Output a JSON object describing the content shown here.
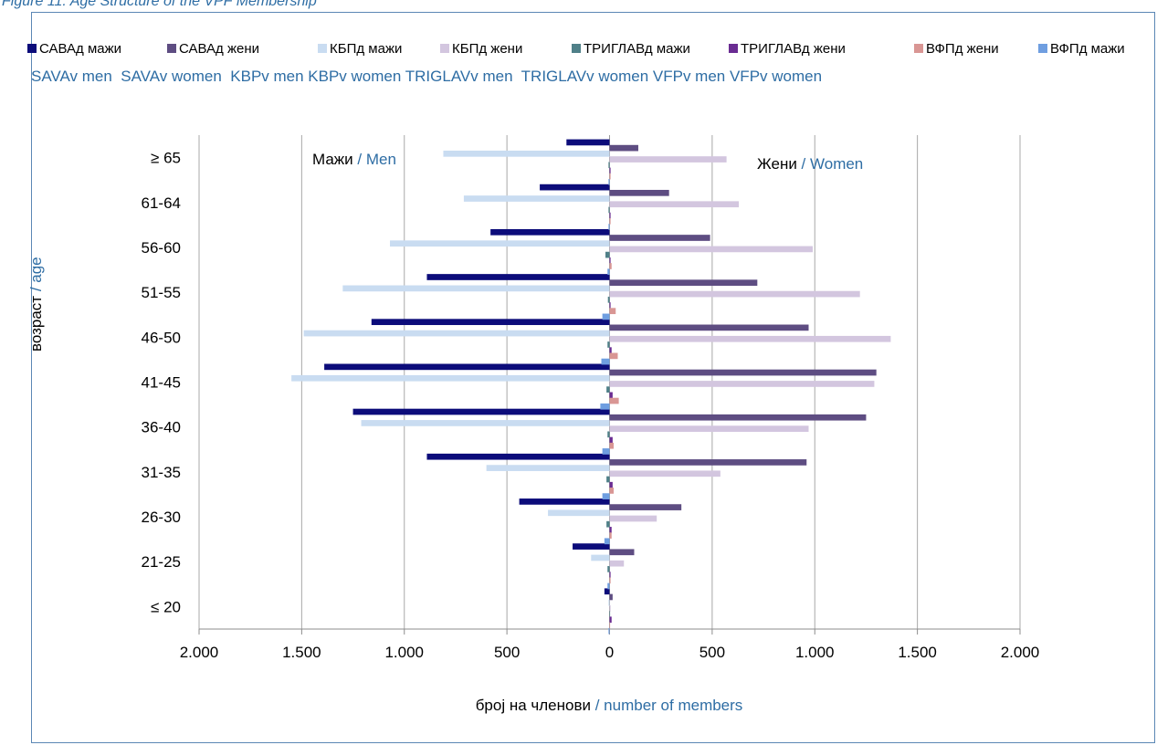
{
  "caption": "Figure 11. Age Structure of the VPF Membership",
  "chart_data": {
    "type": "bar",
    "orientation": "horizontal",
    "categories": [
      "≥ 65",
      "61-64",
      "56-60",
      "51-55",
      "46-50",
      "41-45",
      "36-40",
      "31-35",
      "26-30",
      "21-25",
      "≤ 20"
    ],
    "xlim": [
      -2000,
      2000
    ],
    "xticks": [
      -2000,
      -1500,
      -1000,
      -500,
      0,
      500,
      1000,
      1500,
      2000
    ],
    "xtick_labels": [
      "2.000",
      "1.500",
      "1.000",
      "500",
      "0",
      "500",
      "1.000",
      "1.500",
      "2.000"
    ],
    "grid": true,
    "legend_position": "top",
    "xlabel": {
      "mk": "број на членови",
      "en": " / number of members"
    },
    "ylabel": {
      "mk": "возраст",
      "en": " / age"
    },
    "side_labels": {
      "men": {
        "mk": "Мажи",
        "en": " / Men"
      },
      "women": {
        "mk": "Жени",
        "en": " / Women"
      }
    },
    "legend_en": "SAVAv men  SAVAv women  KBPv men KBPv women TRIGLAVv men  TRIGLAVv women VFPv men VFPv women",
    "series": [
      {
        "name": "САВАд мажи",
        "color": "#0c0c7a",
        "values": [
          -210,
          -340,
          -580,
          -890,
          -1160,
          -1390,
          -1250,
          -890,
          -440,
          -180,
          -25
        ]
      },
      {
        "name": "САВАд жени",
        "color": "#5e4d82",
        "values": [
          140,
          290,
          490,
          720,
          970,
          1300,
          1250,
          960,
          350,
          120,
          15
        ]
      },
      {
        "name": "КБПд мажи",
        "color": "#c9dcf1",
        "values": [
          -810,
          -710,
          -1070,
          -1300,
          -1490,
          -1550,
          -1210,
          -600,
          -300,
          -90,
          -5
        ]
      },
      {
        "name": "КБПд жени",
        "color": "#d3c6df",
        "values": [
          570,
          630,
          990,
          1220,
          1370,
          1290,
          970,
          540,
          230,
          70,
          5
        ]
      },
      {
        "name": "ТРИГЛАВд мажи",
        "color": "#4f8088",
        "values": [
          -5,
          -5,
          -20,
          -8,
          -10,
          -15,
          -10,
          -15,
          -15,
          -10,
          0
        ]
      },
      {
        "name": "ТРИГЛАВд жени",
        "color": "#6a2c92",
        "values": [
          5,
          5,
          5,
          5,
          10,
          15,
          15,
          15,
          10,
          5,
          10
        ]
      },
      {
        "name": "ВФПд жени",
        "color": "#d99694",
        "values": [
          5,
          5,
          10,
          30,
          40,
          45,
          20,
          20,
          10,
          5,
          0
        ]
      },
      {
        "name": "ВФПд мажи",
        "color": "#6f9ee0",
        "values": [
          -5,
          -5,
          -10,
          -35,
          -40,
          -45,
          -35,
          -35,
          -25,
          -10,
          -5
        ]
      }
    ]
  }
}
